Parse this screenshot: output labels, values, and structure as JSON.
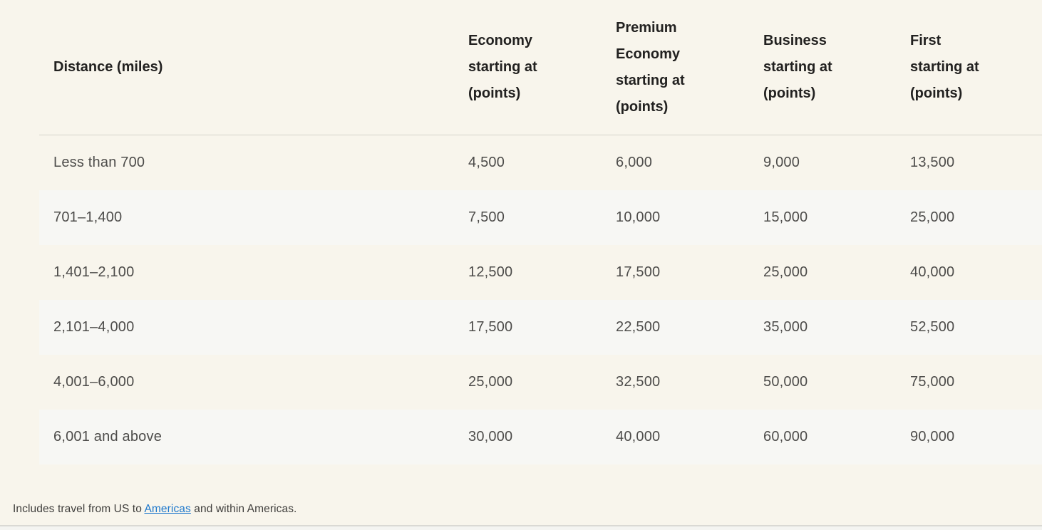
{
  "theme": {
    "page_background": "#F8F5EC",
    "stripe_background": "#F7F7F4",
    "divider_color": "#D5D3CB",
    "header_text_color": "#222120",
    "cell_text_color": "#4D4C4A",
    "link_color": "#1E78CC"
  },
  "table": {
    "header": [
      "Distance (miles)",
      "Economy starting at (points)",
      "Premium Economy starting at (points)",
      "Business starting at (points)",
      "First starting at (points)"
    ],
    "rows": [
      [
        "Less than 700",
        "4,500",
        "6,000",
        "9,000",
        "13,500"
      ],
      [
        "701–1,400",
        "7,500",
        "10,000",
        "15,000",
        "25,000"
      ],
      [
        "1,401–2,100",
        "12,500",
        "17,500",
        "25,000",
        "40,000"
      ],
      [
        "2,101–4,000",
        "17,500",
        "22,500",
        "35,000",
        "52,500"
      ],
      [
        "4,001–6,000",
        "25,000",
        "32,500",
        "50,000",
        "75,000"
      ],
      [
        "6,001 and above",
        "30,000",
        "40,000",
        "60,000",
        "90,000"
      ]
    ]
  },
  "footnote": {
    "prefix": "Includes travel from US to ",
    "link_text": "Americas",
    "suffix": " and within Americas."
  }
}
